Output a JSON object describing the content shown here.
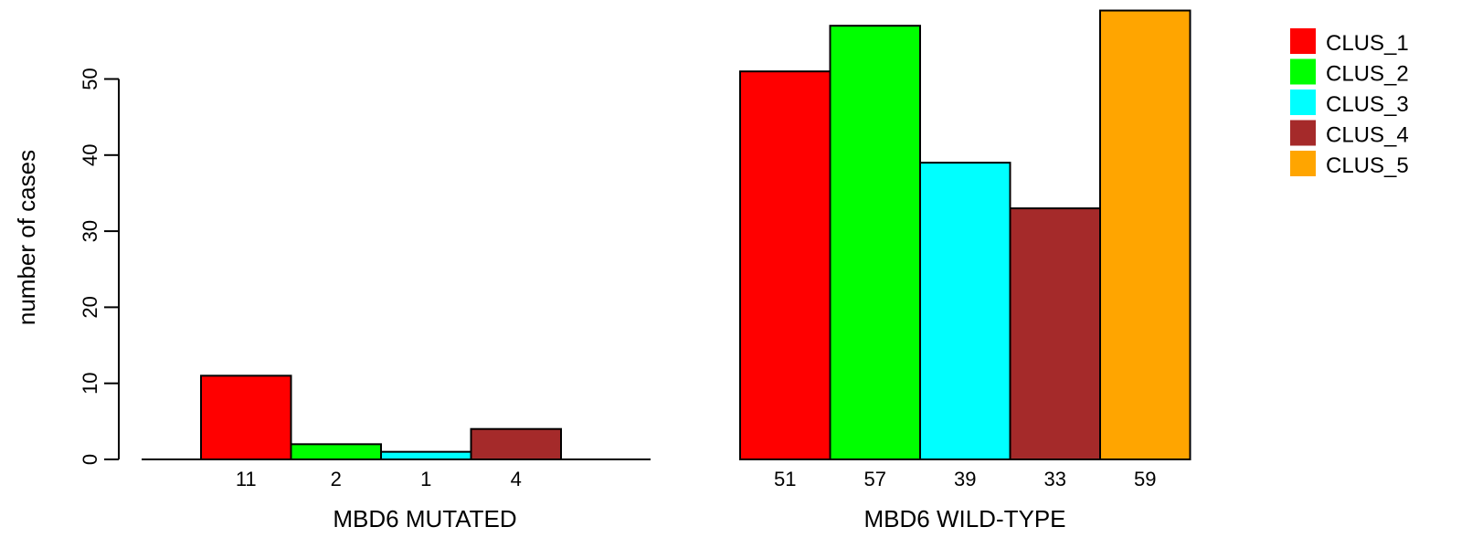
{
  "chart_data": {
    "type": "bar",
    "ylabel": "number of cases",
    "ylim": [
      0,
      60
    ],
    "yticks": [
      0,
      10,
      20,
      30,
      40,
      50
    ],
    "series": [
      {
        "name": "CLUS_1",
        "color": "#ff0000"
      },
      {
        "name": "CLUS_2",
        "color": "#00ff00"
      },
      {
        "name": "CLUS_3",
        "color": "#00ffff"
      },
      {
        "name": "CLUS_4",
        "color": "#a52a2a"
      },
      {
        "name": "CLUS_5",
        "color": "#ffa500"
      }
    ],
    "groups": [
      {
        "label": "MBD6 MUTATED",
        "values": [
          11,
          2,
          1,
          4,
          0
        ],
        "value_labels": [
          "11",
          "2",
          "1",
          "4",
          ""
        ]
      },
      {
        "label": "MBD6 WILD-TYPE",
        "values": [
          51,
          57,
          39,
          33,
          59
        ],
        "value_labels": [
          "51",
          "57",
          "39",
          "33",
          "59"
        ]
      }
    ],
    "legend_position": "top-right"
  }
}
